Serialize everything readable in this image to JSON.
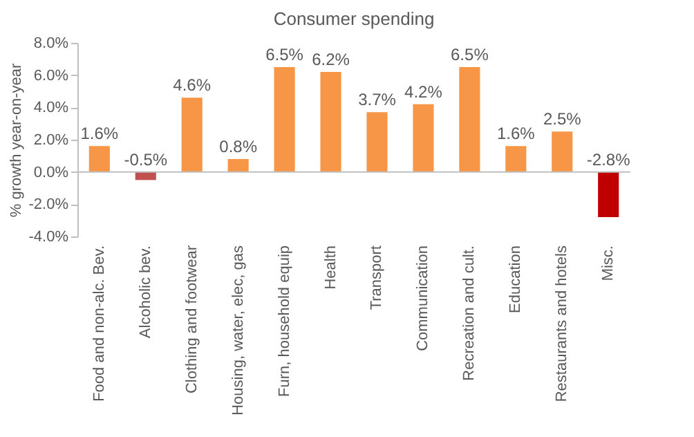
{
  "chart_data": {
    "type": "bar",
    "title": "Consumer spending",
    "ylabel": "% growth year-on-year",
    "categories": [
      "Food and non-alc. Bev.",
      "Alcoholic bev.",
      "Clothing and footwear",
      "Housing, water, elec, gas",
      "Furn, household equip",
      "Health",
      "Transport",
      "Communication",
      "Recreation and cult.",
      "Education",
      "Restaurants and hotels",
      "Misc."
    ],
    "values": [
      1.6,
      -0.5,
      4.6,
      0.8,
      6.5,
      6.2,
      3.7,
      4.2,
      6.5,
      1.6,
      2.5,
      -2.8
    ],
    "colors": [
      "#f79646",
      "#c0504d",
      "#f79646",
      "#f79646",
      "#f79646",
      "#f79646",
      "#f79646",
      "#f79646",
      "#f79646",
      "#f79646",
      "#f79646",
      "#c00000"
    ],
    "value_labels": [
      "1.6%",
      "-0.5%",
      "4.6%",
      "0.8%",
      "6.5%",
      "6.2%",
      "3.7%",
      "4.2%",
      "6.5%",
      "1.6%",
      "2.5%",
      "-2.8%"
    ],
    "ylim": [
      -4,
      8
    ],
    "data_labels": false,
    "yticks": [
      {
        "value": -4,
        "label": "-4.0%"
      },
      {
        "value": -2,
        "label": "-2.0%"
      },
      {
        "value": 0,
        "label": "0.0%"
      },
      {
        "value": 2,
        "label": "2.0%"
      },
      {
        "value": 4,
        "label": "4.0%"
      },
      {
        "value": 6,
        "label": "6.0%"
      },
      {
        "value": 8,
        "label": "8.0%"
      }
    ]
  }
}
